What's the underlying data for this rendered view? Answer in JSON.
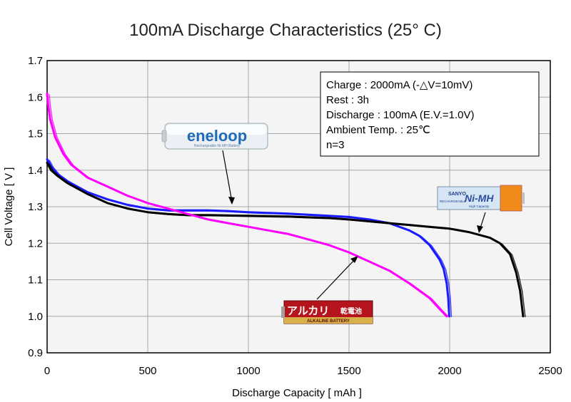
{
  "chart_data": {
    "type": "line",
    "title": "100mA Discharge Characteristics (25° C)",
    "xlabel": "Discharge Capacity [ mAh ]",
    "ylabel": "Cell Voltage [ V ]",
    "xlim": [
      0,
      2500
    ],
    "ylim": [
      0.9,
      1.7
    ],
    "xticks": [
      0,
      500,
      1000,
      1500,
      2000,
      2500
    ],
    "yticks": [
      0.9,
      1.0,
      1.1,
      1.2,
      1.3,
      1.4,
      1.5,
      1.6,
      1.7
    ],
    "xtick_labels": [
      "0",
      "500",
      "1000",
      "1500",
      "2000",
      "2500"
    ],
    "ytick_labels": [
      "0.9",
      "1.0",
      "1.1",
      "1.2",
      "1.3",
      "1.4",
      "1.5",
      "1.6",
      "1.7"
    ],
    "grid": true,
    "series": [
      {
        "label": "eneloop",
        "color": "#1a1aff",
        "points": [
          [
            0,
            1.43
          ],
          [
            20,
            1.41
          ],
          [
            50,
            1.39
          ],
          [
            100,
            1.37
          ],
          [
            200,
            1.34
          ],
          [
            300,
            1.32
          ],
          [
            400,
            1.305
          ],
          [
            500,
            1.295
          ],
          [
            600,
            1.29
          ],
          [
            700,
            1.29
          ],
          [
            800,
            1.29
          ],
          [
            900,
            1.288
          ],
          [
            1000,
            1.285
          ],
          [
            1100,
            1.283
          ],
          [
            1200,
            1.281
          ],
          [
            1300,
            1.278
          ],
          [
            1400,
            1.275
          ],
          [
            1500,
            1.272
          ],
          [
            1600,
            1.265
          ],
          [
            1700,
            1.255
          ],
          [
            1800,
            1.235
          ],
          [
            1850,
            1.22
          ],
          [
            1900,
            1.195
          ],
          [
            1950,
            1.155
          ],
          [
            1970,
            1.13
          ],
          [
            1985,
            1.09
          ],
          [
            1993,
            1.05
          ],
          [
            1998,
            1.0
          ]
        ]
      },
      {
        "label": "SANYO Ni-MH",
        "color": "#000000",
        "points": [
          [
            0,
            1.42
          ],
          [
            20,
            1.4
          ],
          [
            50,
            1.385
          ],
          [
            100,
            1.365
          ],
          [
            200,
            1.335
          ],
          [
            300,
            1.31
          ],
          [
            400,
            1.295
          ],
          [
            500,
            1.285
          ],
          [
            600,
            1.28
          ],
          [
            700,
            1.277
          ],
          [
            800,
            1.277
          ],
          [
            900,
            1.276
          ],
          [
            1000,
            1.275
          ],
          [
            1100,
            1.274
          ],
          [
            1200,
            1.273
          ],
          [
            1300,
            1.271
          ],
          [
            1400,
            1.269
          ],
          [
            1500,
            1.265
          ],
          [
            1600,
            1.26
          ],
          [
            1700,
            1.255
          ],
          [
            1800,
            1.25
          ],
          [
            1900,
            1.245
          ],
          [
            2000,
            1.24
          ],
          [
            2100,
            1.23
          ],
          [
            2200,
            1.215
          ],
          [
            2250,
            1.2
          ],
          [
            2300,
            1.17
          ],
          [
            2330,
            1.12
          ],
          [
            2350,
            1.07
          ],
          [
            2365,
            1.0
          ]
        ]
      },
      {
        "label": "アルカリ 乾電池",
        "color": "#ff00ff",
        "points": [
          [
            0,
            1.61
          ],
          [
            5,
            1.58
          ],
          [
            15,
            1.54
          ],
          [
            40,
            1.49
          ],
          [
            80,
            1.445
          ],
          [
            120,
            1.415
          ],
          [
            200,
            1.38
          ],
          [
            300,
            1.355
          ],
          [
            400,
            1.33
          ],
          [
            500,
            1.31
          ],
          [
            600,
            1.295
          ],
          [
            700,
            1.28
          ],
          [
            800,
            1.265
          ],
          [
            900,
            1.255
          ],
          [
            1000,
            1.245
          ],
          [
            1100,
            1.235
          ],
          [
            1200,
            1.225
          ],
          [
            1300,
            1.21
          ],
          [
            1400,
            1.195
          ],
          [
            1500,
            1.175
          ],
          [
            1600,
            1.15
          ],
          [
            1700,
            1.125
          ],
          [
            1800,
            1.09
          ],
          [
            1900,
            1.05
          ],
          [
            1950,
            1.02
          ],
          [
            1985,
            1.0
          ]
        ]
      }
    ],
    "legend_box": {
      "lines": [
        "Charge : 2000mA (-△V=10mV)",
        "Rest : 3h",
        "Discharge : 100mA (E.V.=1.0V)",
        "Ambient Temp. : 25℃",
        "n=3"
      ]
    },
    "battery_labels": {
      "eneloop": {
        "brand": "eneloop",
        "sub": "Rechargeable Ni-MH Battery"
      },
      "sanyo": {
        "brand": "SANYO",
        "sub": "RECHARGEABLE",
        "type": "Ni-MH",
        "cap": "High Capacity"
      },
      "alkaline": {
        "main": "アルカリ",
        "main2": "乾電池",
        "sub": "ALKALINE BATTERY"
      }
    }
  }
}
